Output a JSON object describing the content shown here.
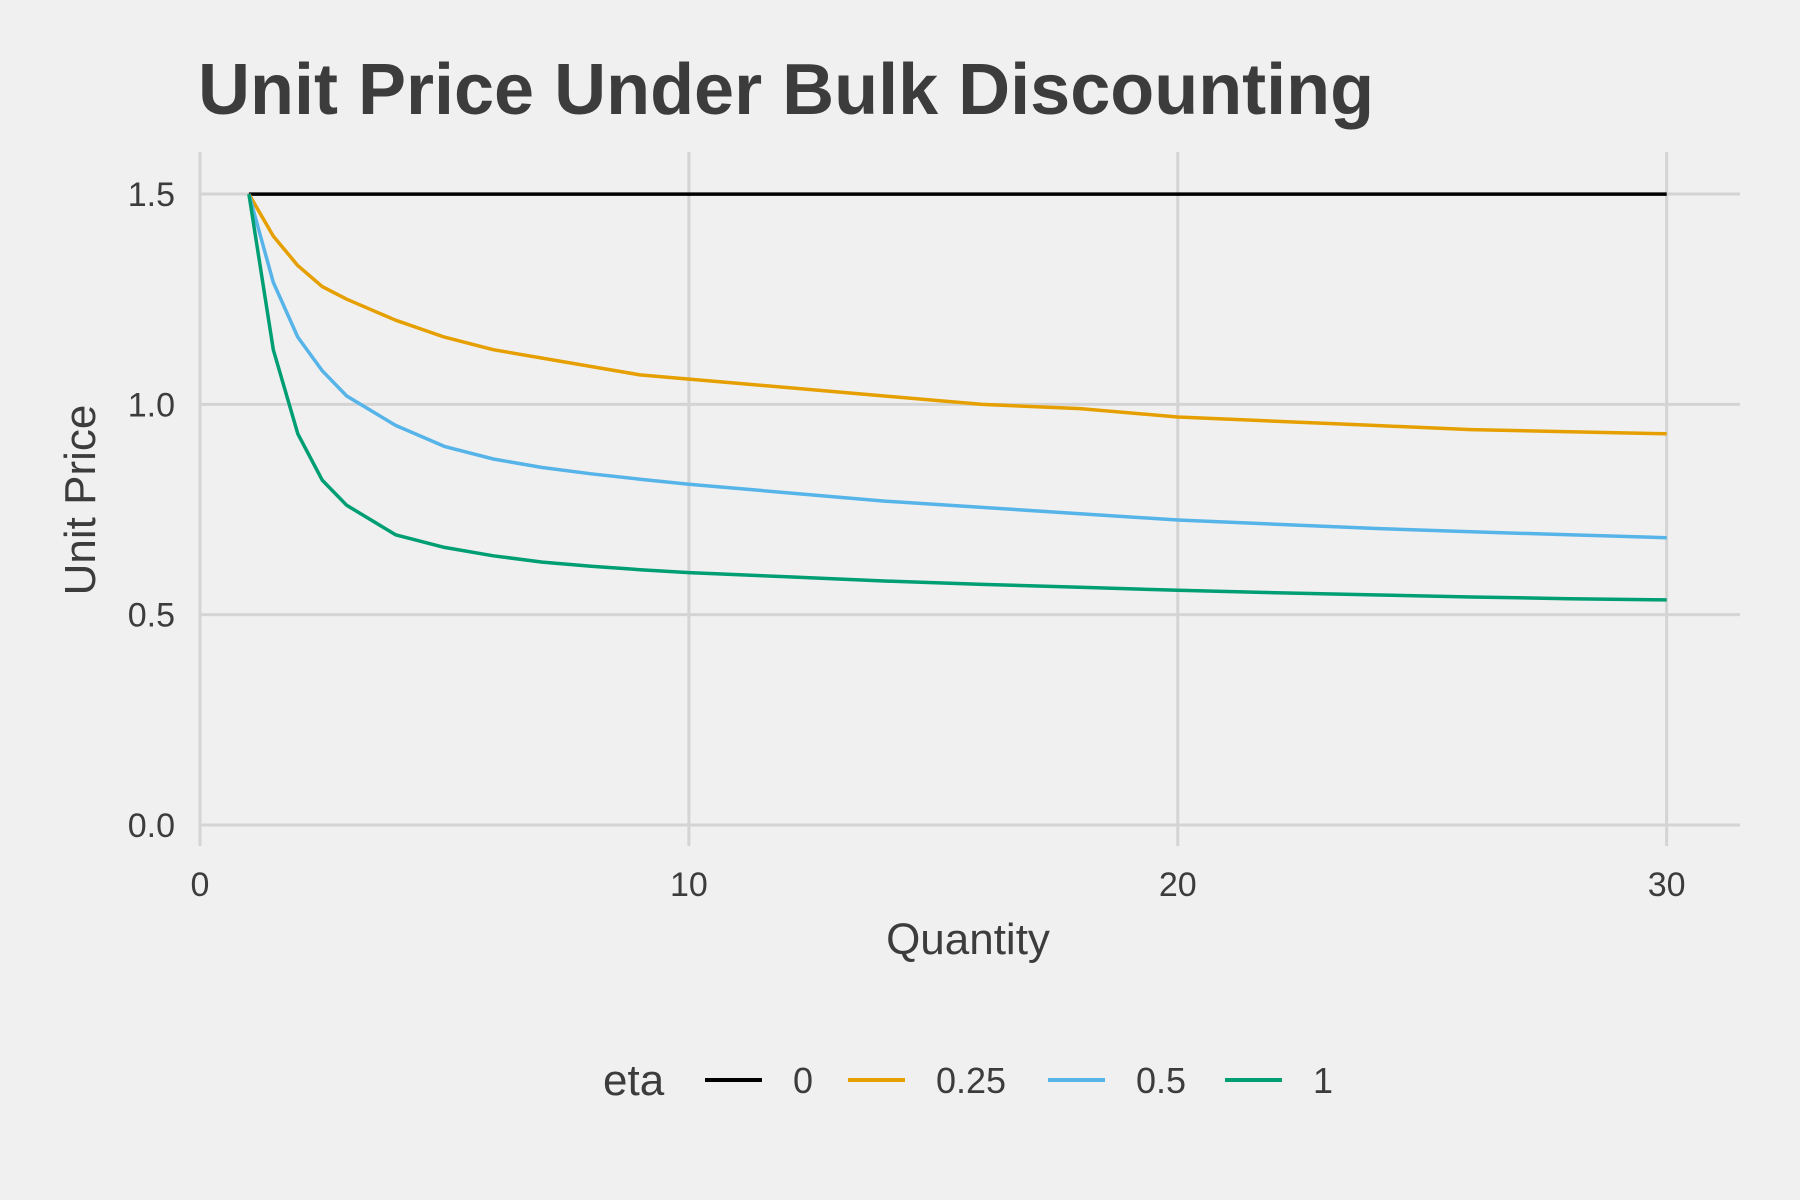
{
  "chart_data": {
    "type": "line",
    "title": "Unit Price Under Bulk Discounting",
    "xlabel": "Quantity",
    "ylabel": "Unit Price",
    "xlim": [
      0,
      31.5
    ],
    "ylim": [
      -0.05,
      1.6
    ],
    "x_ticks": [
      0,
      10,
      20,
      30
    ],
    "y_ticks": [
      0.0,
      0.5,
      1.0,
      1.5
    ],
    "x_tick_labels": [
      "0",
      "10",
      "20",
      "30"
    ],
    "y_tick_labels": [
      "0.0",
      "0.5",
      "1.0",
      "1.5"
    ],
    "grid": true,
    "legend": {
      "title": "eta",
      "position": "bottom"
    },
    "x": [
      1,
      1.5,
      2,
      2.5,
      3,
      4,
      5,
      6,
      7,
      8,
      9,
      10,
      12,
      14,
      16,
      18,
      20,
      22,
      24,
      26,
      28,
      30
    ],
    "series": [
      {
        "name": "0",
        "color": "#000000",
        "values": [
          1.5,
          1.5,
          1.5,
          1.5,
          1.5,
          1.5,
          1.5,
          1.5,
          1.5,
          1.5,
          1.5,
          1.5,
          1.5,
          1.5,
          1.5,
          1.5,
          1.5,
          1.5,
          1.5,
          1.5,
          1.5,
          1.5
        ]
      },
      {
        "name": "0.25",
        "color": "#e69f00",
        "values": [
          1.5,
          1.4,
          1.33,
          1.28,
          1.25,
          1.2,
          1.16,
          1.13,
          1.11,
          1.09,
          1.07,
          1.06,
          1.04,
          1.02,
          1.0,
          0.99,
          0.97,
          0.96,
          0.95,
          0.94,
          0.935,
          0.93
        ]
      },
      {
        "name": "0.5",
        "color": "#56b4e9",
        "values": [
          1.5,
          1.29,
          1.16,
          1.08,
          1.02,
          0.95,
          0.9,
          0.87,
          0.85,
          0.835,
          0.822,
          0.81,
          0.79,
          0.77,
          0.755,
          0.74,
          0.725,
          0.715,
          0.705,
          0.697,
          0.69,
          0.683
        ]
      },
      {
        "name": "1",
        "color": "#009e73",
        "values": [
          1.5,
          1.13,
          0.93,
          0.82,
          0.76,
          0.69,
          0.66,
          0.64,
          0.625,
          0.615,
          0.607,
          0.6,
          0.59,
          0.58,
          0.572,
          0.565,
          0.558,
          0.552,
          0.547,
          0.542,
          0.538,
          0.535
        ]
      }
    ]
  }
}
